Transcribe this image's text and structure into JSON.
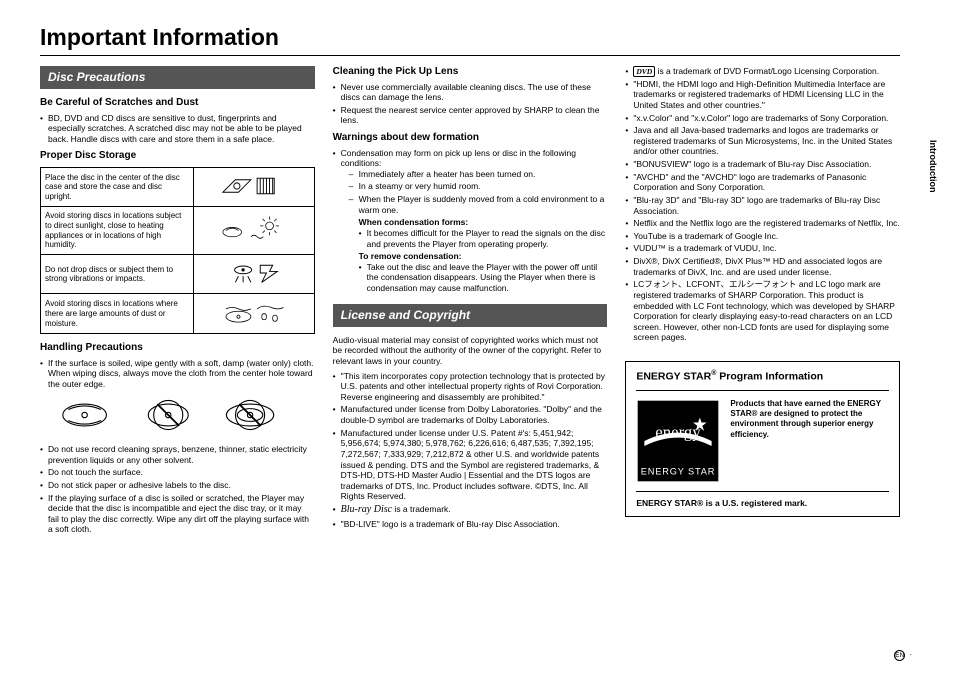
{
  "page": {
    "title": "Important Information",
    "side_tab": "Introduction",
    "page_marker": "EN",
    "page_suffix": " ·"
  },
  "col1": {
    "sec1_header": "Disc Precautions",
    "h_scratches": "Be Careful of Scratches and Dust",
    "scratches_li": "BD, DVD and CD discs are sensitive to dust, fingerprints and especially scratches. A scratched disc may not be able to be played back. Handle discs with care and store them in a safe place.",
    "h_storage": "Proper Disc Storage",
    "storage_rows": [
      "Place the disc in the center of the disc case and store the case and disc upright.",
      "Avoid storing discs in locations subject to direct sunlight, close to heating appliances or in locations of high humidity.",
      "Do not drop discs or subject them to strong vibrations or impacts.",
      "Avoid storing discs in locations where there are large amounts of dust or moisture."
    ],
    "h_handling": "Handling Precautions",
    "handling_intro": "If the surface is soiled, wipe gently with a soft, damp (water only) cloth. When wiping discs, always move the cloth from the center hole toward the outer edge.",
    "handling_items": [
      "Do not use record cleaning sprays, benzene, thinner, static electricity prevention liquids or any other solvent.",
      "Do not touch the surface.",
      "Do not stick paper or adhesive labels to the disc.",
      "If the playing surface of a disc is soiled or scratched, the Player may decide that the disc is incompatible and eject the disc tray, or it may fail to play the disc correctly. Wipe any dirt off the playing surface with a soft cloth."
    ]
  },
  "col2": {
    "h_cleaning": "Cleaning the Pick Up Lens",
    "cleaning_items": [
      "Never use commercially available cleaning discs. The use of these discs can damage the lens.",
      "Request the nearest service center approved by SHARP to clean the lens."
    ],
    "h_dew": "Warnings about dew formation",
    "dew_intro": "Condensation may form on pick up lens or disc in the following conditions:",
    "dew_conditions": [
      "Immediately after a heater has been turned on.",
      "In a steamy or very humid room.",
      "When the Player is suddenly moved from a cold environment to a warm one."
    ],
    "dew_when_head": "When condensation forms:",
    "dew_when_item": "It becomes difficult for the Player to read the signals on the disc and prevents the Player from operating properly.",
    "dew_remove_head": "To remove condensation:",
    "dew_remove_item": "Take out the disc and leave the Player with the power off until the condensation disappears. Using the Player when there is condensation may cause malfunction.",
    "sec2_header": "License and Copyright",
    "license_intro": "Audio-visual material may consist of copyrighted works which must not be recorded without the authority of the owner of the copyright. Refer to relevant laws in your country.",
    "license_items": [
      "\"This item incorporates copy protection technology that is protected by U.S. patents and other intellectual property rights of Rovi Corporation. Reverse engineering and disassembly are prohibited.\"",
      "Manufactured under license from Dolby Laboratories. \"Dolby\" and the double-D symbol are trademarks of Dolby Laboratories.",
      "Manufactured under license under U.S. Patent #'s: 5,451,942; 5,956,674; 5,974,380; 5,978,762; 6,226,616; 6,487,535; 7,392,195; 7,272,567; 7,333,929; 7,212,872 & other U.S. and worldwide patents issued & pending. DTS and the Symbol are registered trademarks, & DTS-HD, DTS-HD Master Audio | Essential and the DTS logos are trademarks of DTS, Inc. Product includes software. ©DTS, Inc. All Rights Reserved.",
      "__BD__ is a trademark.",
      "\"BD-LIVE\" logo is a trademark of Blu-ray Disc Association."
    ]
  },
  "col3": {
    "items": [
      "__DVD__ is a trademark of DVD Format/Logo Licensing Corporation.",
      "\"HDMI, the HDMI logo and High-Definition Multimedia Interface are trademarks or registered trademarks of HDMI Licensing LLC in the United States and other countries.\"",
      "\"x.v.Color\" and \"x.v.Color\" logo are trademarks of Sony Corporation.",
      "Java and all Java-based trademarks and logos are trademarks or registered trademarks of Sun Microsystems, Inc. in the United States and/or other countries.",
      "\"BONUSVIEW\" logo is a trademark of Blu-ray Disc Association.",
      "\"AVCHD\" and the \"AVCHD\" logo are trademarks of Panasonic Corporation and Sony Corporation.",
      "\"Blu-ray 3D\" and \"Blu-ray 3D\" logo are trademarks of Blu-ray Disc Association.",
      "Netflix and the Netflix logo are the registered trademarks of Netflix, Inc.",
      "YouTube is a trademark of Google Inc.",
      "VUDU™ is a trademark of VUDU, Inc.",
      "DivX®, DivX Certified®, DivX Plus™ HD and associated logos are trademarks of DivX, Inc. and are used under license.",
      "LCフォント、LCFONT、エルシーフォント and LC logo mark are registered trademarks of SHARP Corporation. This product is embedded with LC Font technology, which was developed by SHARP Corporation for clearly displaying easy-to-read characters on an LCD screen. However, other non-LCD fonts are used for displaying some screen pages."
    ],
    "energy": {
      "title_a": "ENERGY STAR",
      "title_b": "  Program Information",
      "blurb": "Products that have earned the ENERGY STAR® are designed to protect the environment through superior energy efficiency.",
      "logo_script": "energy",
      "logo_caps": "ENERGY STAR",
      "foot": "ENERGY STAR® is a U.S. registered mark."
    }
  }
}
